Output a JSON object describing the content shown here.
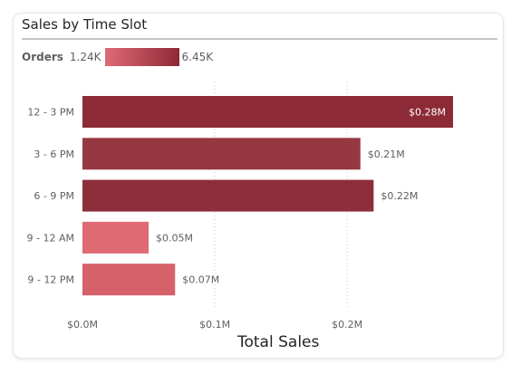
{
  "title": "Sales by Time Slot",
  "legend": {
    "label": "Orders",
    "min_label": "1.24K",
    "max_label": "6.45K",
    "min": 1240,
    "max": 6450,
    "color_low": "#e06a74",
    "color_high": "#8c2a36"
  },
  "chart_data": {
    "type": "bar",
    "orientation": "horizontal",
    "categories": [
      "12 - 3 PM",
      "3 - 6 PM",
      "6 - 9 PM",
      "9 - 12 AM",
      "9 - 12 PM"
    ],
    "values": [
      0.28,
      0.21,
      0.22,
      0.05,
      0.07
    ],
    "data_labels": [
      "$0.28M",
      "$0.21M",
      "$0.22M",
      "$0.05M",
      "$0.07M"
    ],
    "bar_colors": [
      "#8c2a36",
      "#963842",
      "#8e2e3a",
      "#e06a74",
      "#d6616b"
    ],
    "xlabel": "Total Sales",
    "xlim": [
      0,
      0.28
    ],
    "x_ticks": [
      0,
      0.1,
      0.2
    ],
    "x_tick_labels": [
      "$0.0M",
      "$0.1M",
      "$0.2M"
    ],
    "grid": true
  }
}
